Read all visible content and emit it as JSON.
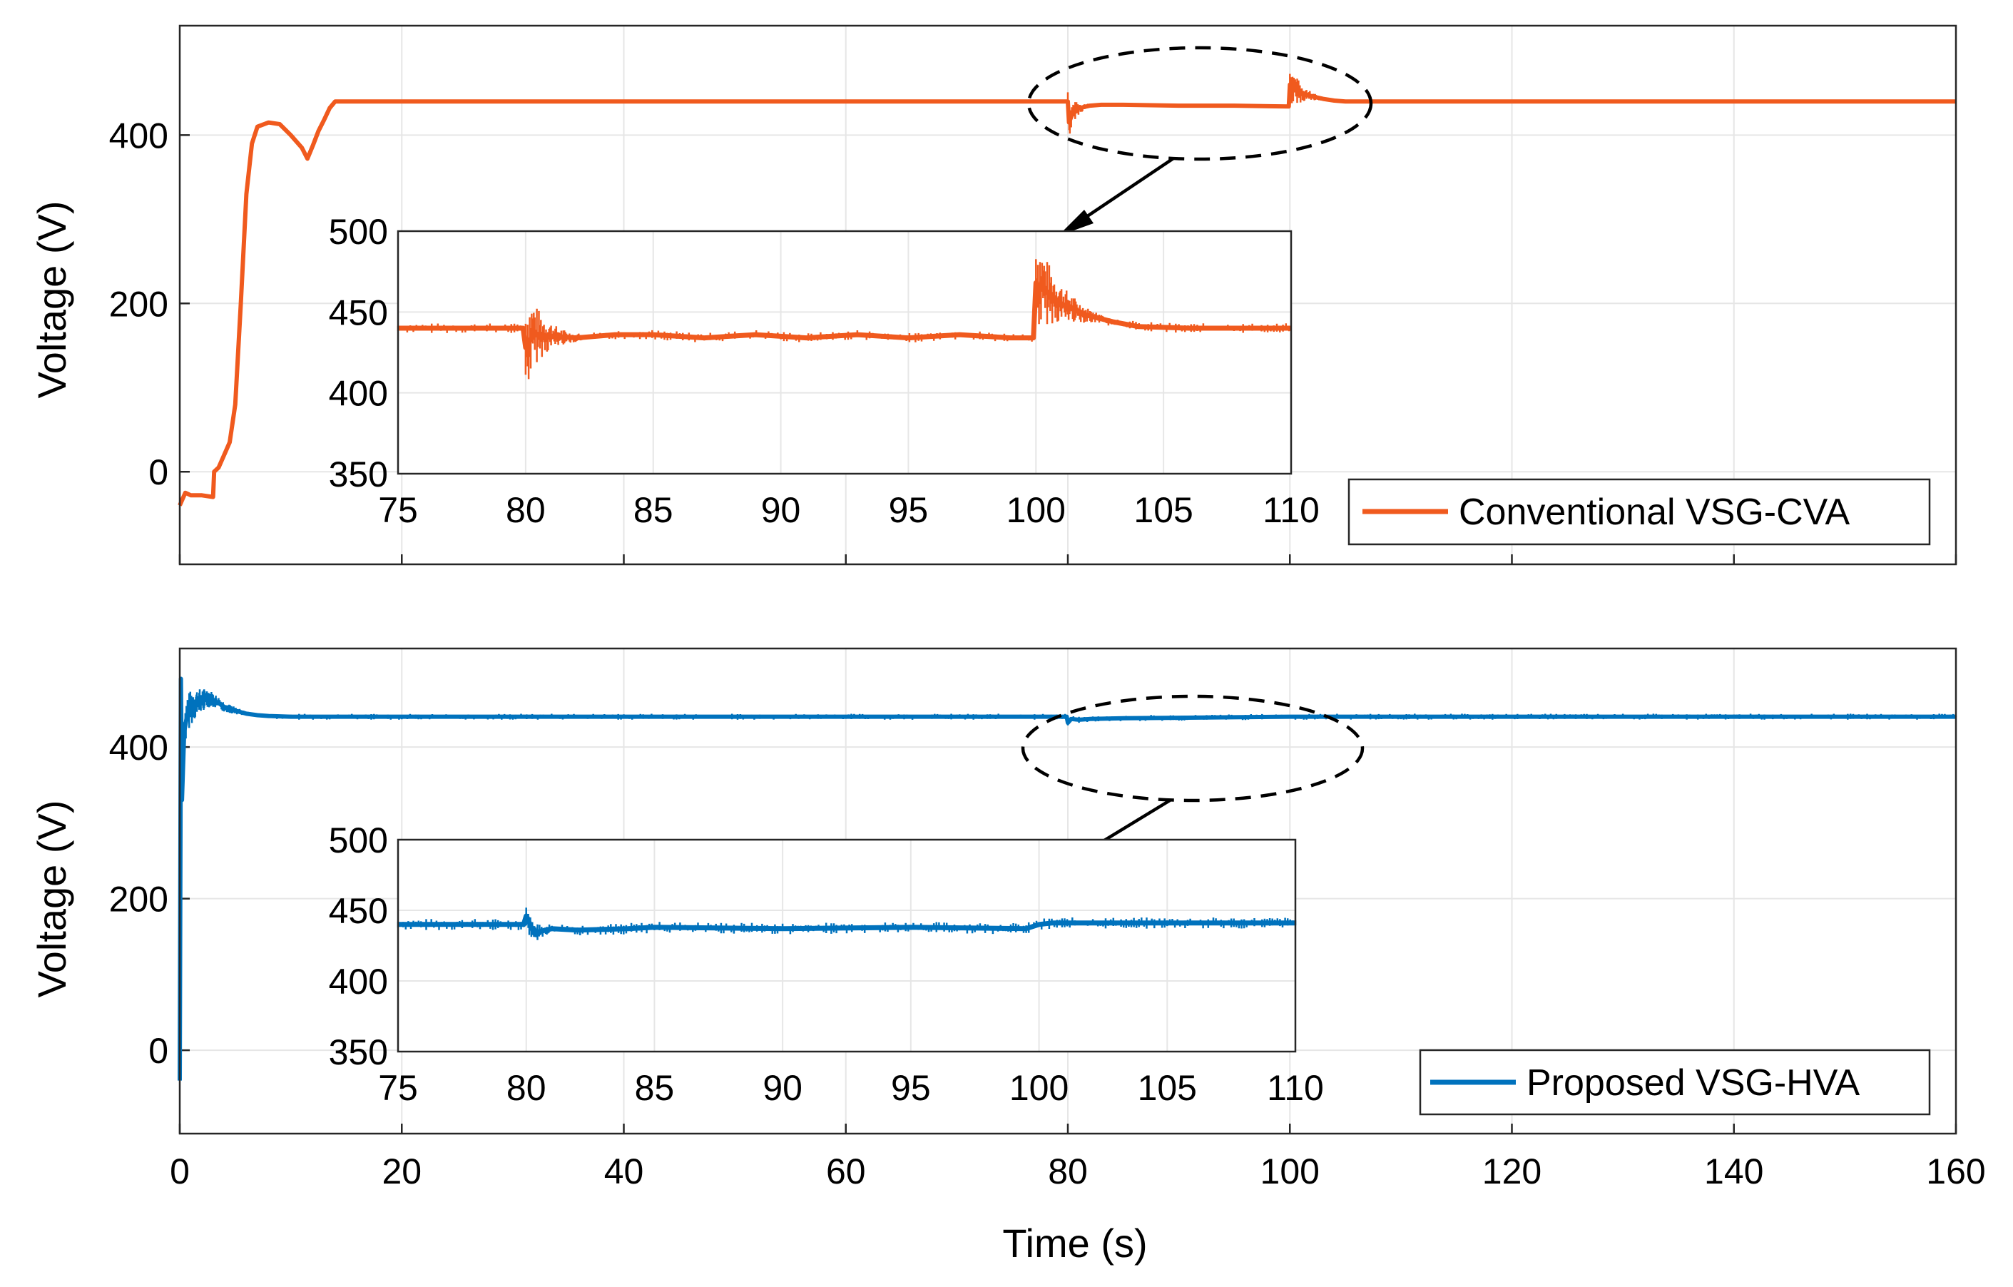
{
  "figure": {
    "xlabel": "Time (s)"
  },
  "chart_data": [
    {
      "type": "line",
      "panel": "top",
      "ylabel": "Voltage (V)",
      "xlim": [
        0,
        160
      ],
      "ylim": [
        -110,
        530
      ],
      "xticks": [
        0,
        20,
        40,
        60,
        80,
        100,
        120,
        140,
        160
      ],
      "yticks": [
        0,
        200,
        400
      ],
      "grid": true,
      "legend_position": "bottom-right",
      "series": [
        {
          "name": "Conventional VSG-CVA",
          "color": "#f05a1e",
          "x": [
            0,
            0.5,
            1.0,
            2.0,
            3.0,
            3.1,
            3.5,
            4.0,
            4.5,
            5.0,
            5.5,
            6.0,
            6.5,
            7.0,
            8.0,
            9.0,
            10.0,
            11.0,
            11.5,
            12.0,
            12.5,
            13.0,
            13.5,
            14.0,
            16.0,
            40.0,
            80.0,
            80.1,
            80.5,
            81.0,
            82.0,
            83.0,
            85.0,
            90.0,
            95.0,
            99.9,
            100.0,
            100.3,
            101.0,
            102.0,
            103.0,
            104.0,
            105.0,
            106.0,
            110.0,
            160.0
          ],
          "y": [
            -40,
            -25,
            -28,
            -28,
            -30,
            0,
            5,
            20,
            35,
            80,
            200,
            330,
            390,
            410,
            415,
            413,
            400,
            385,
            372,
            388,
            405,
            418,
            432,
            440,
            440,
            440,
            440,
            415,
            428,
            432,
            435,
            436,
            436,
            435,
            435,
            434,
            460,
            456,
            450,
            446,
            443,
            441,
            440,
            440,
            440,
            440
          ]
        }
      ],
      "inset": {
        "xlim": [
          75,
          110
        ],
        "ylim": [
          350,
          500
        ],
        "xticks": [
          75,
          80,
          85,
          90,
          95,
          100,
          105,
          110
        ],
        "yticks": [
          350,
          400,
          450,
          500
        ],
        "series": [
          {
            "name": "Conventional VSG-CVA",
            "x": [
              75,
              79.9,
              80.0,
              80.3,
              81.0,
              82.0,
              83.5,
              85.0,
              87.0,
              89.0,
              91.0,
              93.0,
              95.0,
              97.0,
              99.0,
              99.9,
              100.0,
              100.2,
              101.0,
              102.0,
              103.0,
              104.0,
              106.0,
              110.0
            ],
            "y": [
              440,
              440,
              428,
              436,
              435,
              434,
              436,
              436,
              434,
              436,
              434,
              436,
              434,
              436,
              434,
              434,
              468,
              465,
              455,
              448,
              444,
              441,
              440,
              440
            ]
          }
        ]
      }
    },
    {
      "type": "line",
      "panel": "bottom",
      "ylabel": "Voltage (V)",
      "xlim": [
        0,
        160
      ],
      "ylim": [
        -110,
        530
      ],
      "xticks": [
        0,
        20,
        40,
        60,
        80,
        100,
        120,
        140,
        160
      ],
      "yticks": [
        0,
        200,
        400
      ],
      "grid": true,
      "legend_position": "bottom-right",
      "series": [
        {
          "name": "Proposed VSG-HVA",
          "color": "#0072bd",
          "x": [
            0,
            0.1,
            0.2,
            0.4,
            0.7,
            1.0,
            1.5,
            2.0,
            2.5,
            3.0,
            3.5,
            4.0,
            5.0,
            6.0,
            7.0,
            8.0,
            10.0,
            40.0,
            79.9,
            80.0,
            80.3,
            81.0,
            82.0,
            85.0,
            100.0,
            160.0
          ],
          "y": [
            -40,
            490,
            330,
            420,
            445,
            452,
            458,
            462,
            465,
            462,
            458,
            453,
            448,
            444,
            442,
            441,
            440,
            440,
            440,
            432,
            437,
            436,
            437,
            438,
            440,
            440
          ]
        }
      ],
      "inset": {
        "xlim": [
          75,
          110
        ],
        "ylim": [
          350,
          500
        ],
        "xticks": [
          75,
          80,
          85,
          90,
          95,
          100,
          105,
          110
        ],
        "yticks": [
          350,
          400,
          450,
          500
        ],
        "series": [
          {
            "name": "Proposed VSG-HVA",
            "x": [
              75,
              79.9,
              80.0,
              80.3,
              81.0,
              82.0,
              84.0,
              85.0,
              90.0,
              95.0,
              99.5,
              100.0,
              100.5,
              110.0
            ],
            "y": [
              440,
              440,
              446,
              434,
              437,
              436,
              437,
              438,
              437,
              438,
              437,
              440,
              441,
              441
            ]
          }
        ]
      }
    }
  ]
}
